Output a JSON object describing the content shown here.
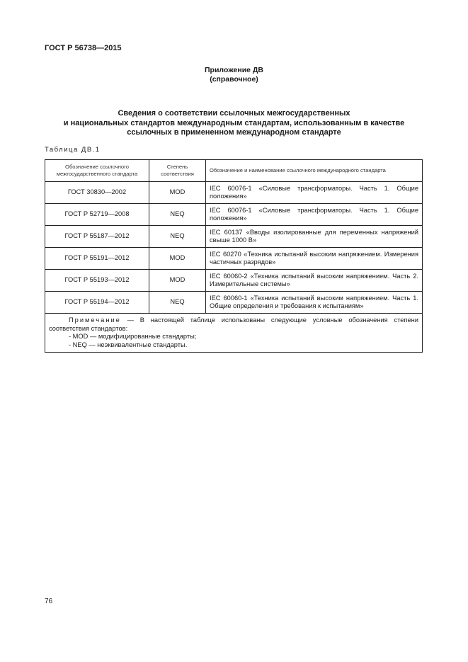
{
  "header": {
    "doc_id": "ГОСТ Р 56738—2015"
  },
  "appendix": {
    "title": "Приложение ДВ",
    "subtitle": "(справочное)"
  },
  "section_title": [
    "Сведения о соответствии ссылочных межгосударственных",
    "и национальных стандартов международным стандартам, использованным в качестве",
    "ссылочных в примененном международном стандарте"
  ],
  "table": {
    "caption": "Таблица ДВ.1",
    "columns": [
      "Обозначение ссылочного межгосударственного стандарта",
      "Степень соответствия",
      "Обозначение и наименование ссылочного международного стандарта"
    ],
    "rows": [
      [
        "ГОСТ 30830—2002",
        "MOD",
        "IEC 60076-1 «Силовые трансформаторы. Часть 1. Общие положения»"
      ],
      [
        "ГОСТ Р 52719—2008",
        "NEQ",
        "IEC 60076-1 «Силовые трансформаторы. Часть 1. Общие положения»"
      ],
      [
        "ГОСТ Р 55187—2012",
        "NEQ",
        "IEC 60137 «Вводы изолированные для переменных напряжений свыше 1000 В»"
      ],
      [
        "ГОСТ Р 55191—2012",
        "MOD",
        "IEC 60270 «Техника испытаний высоким напряжением. Измерения частичных разрядов»"
      ],
      [
        "ГОСТ Р 55193—2012",
        "MOD",
        "IEC 60060-2 «Техника испытаний высоким напряжением. Часть 2. Измерительные системы»"
      ],
      [
        "ГОСТ Р 55194—2012",
        "NEQ",
        "IEC 60060-1 «Техника испытаний высоким напряжением. Часть 1. Общие определения и требования к испытаниям»"
      ]
    ],
    "note": {
      "label": "Примечание",
      "text": " — В настоящей таблице использованы следующие условные обозначения степени соответствия стандартов:",
      "items": [
        "- MOD — модифицированные стандарты;",
        "- NEQ — неэквивалентные стандарты."
      ]
    }
  },
  "page_number": "76"
}
